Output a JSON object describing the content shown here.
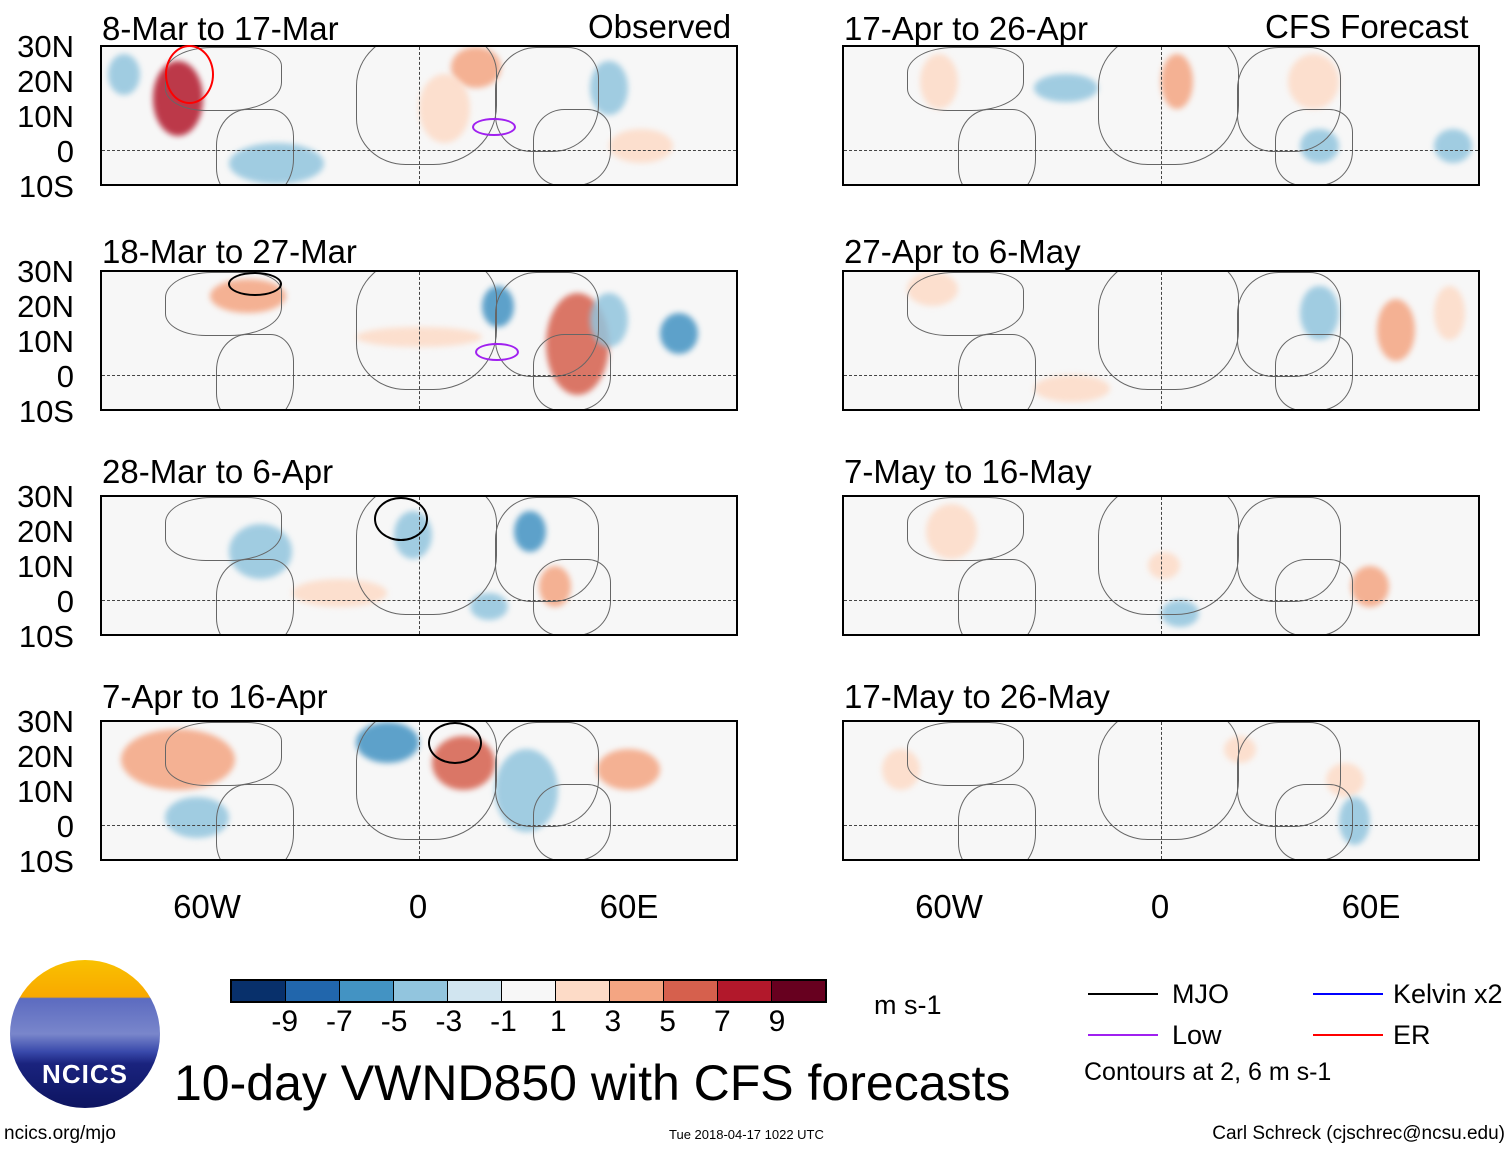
{
  "headers": {
    "observed": "Observed",
    "forecast": "CFS Forecast"
  },
  "observed_panels": [
    "8-Mar to 17-Mar",
    "18-Mar to 27-Mar",
    "28-Mar to 6-Apr",
    "7-Apr to 16-Apr"
  ],
  "forecast_panels": [
    "17-Apr to 26-Apr",
    "27-Apr to 6-May",
    "7-May to 16-May",
    "17-May to 26-May"
  ],
  "lat_labels": [
    "30N",
    "20N",
    "10N",
    "0",
    "10S"
  ],
  "lon_labels": [
    "60W",
    "0",
    "60E"
  ],
  "colorbar": {
    "colors": [
      "#08306b",
      "#2166ac",
      "#4393c3",
      "#92c5de",
      "#d1e5f0",
      "#f7f7f7",
      "#fddbc7",
      "#f4a582",
      "#d6604d",
      "#b2182b",
      "#67001f"
    ],
    "labels": [
      "-9",
      "-7",
      "-5",
      "-3",
      "-1",
      "1",
      "3",
      "5",
      "7",
      "9"
    ],
    "units": "m s-1"
  },
  "legend": {
    "items": [
      {
        "label": "MJO",
        "color": "#000000"
      },
      {
        "label": "Kelvin x2",
        "color": "#0000ff"
      },
      {
        "label": "Low",
        "color": "#a020f0"
      },
      {
        "label": "ER",
        "color": "#ff0000"
      }
    ],
    "note": "Contours at 2, 6 m s-1"
  },
  "title": "10-day VWND850 with CFS forecasts",
  "logo_text": "NCICS",
  "footer": {
    "url": "ncics.org/mjo",
    "timestamp": "Tue 2018-04-17 1022 UTC",
    "author": "Carl Schreck (cjschrec@ncsu.edu)"
  }
}
